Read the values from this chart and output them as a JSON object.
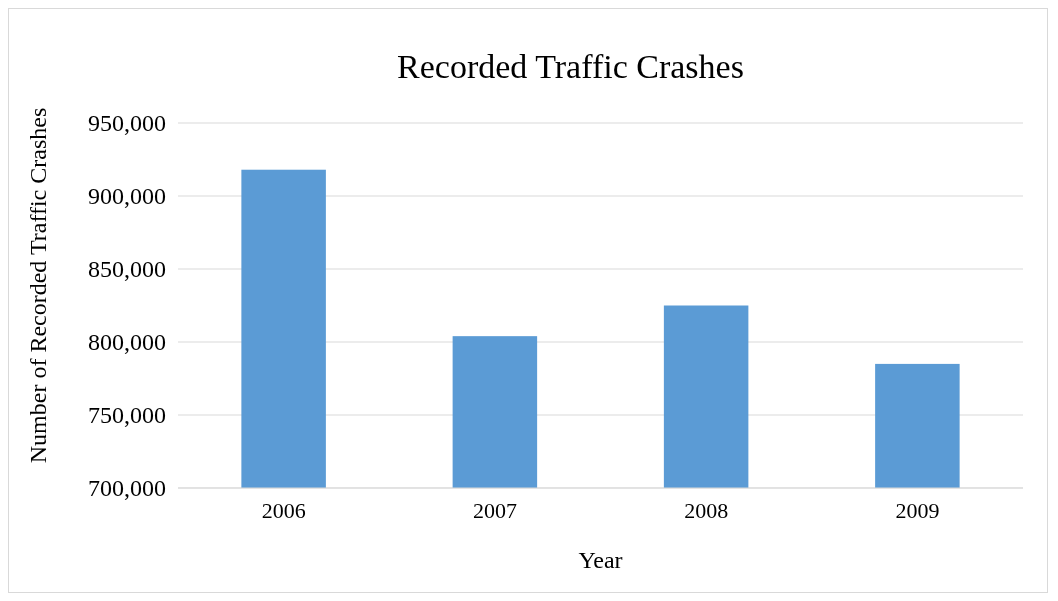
{
  "chart_data": {
    "type": "bar",
    "title": "Recorded Traffic Crashes",
    "xlabel": "Year",
    "ylabel": "Number of Recorded Traffic Crashes",
    "categories": [
      "2006",
      "2007",
      "2008",
      "2009"
    ],
    "values": [
      918000,
      804000,
      825000,
      785000
    ],
    "color": "#5b9bd5",
    "ylim": [
      700000,
      950000
    ],
    "yticks": [
      {
        "value": 700000,
        "label": "700,000"
      },
      {
        "value": 750000,
        "label": "750,000"
      },
      {
        "value": 800000,
        "label": "800,000"
      },
      {
        "value": 850000,
        "label": "850,000"
      },
      {
        "value": 900000,
        "label": "900,000"
      },
      {
        "value": 950000,
        "label": "950,000"
      }
    ],
    "grid": "y"
  }
}
